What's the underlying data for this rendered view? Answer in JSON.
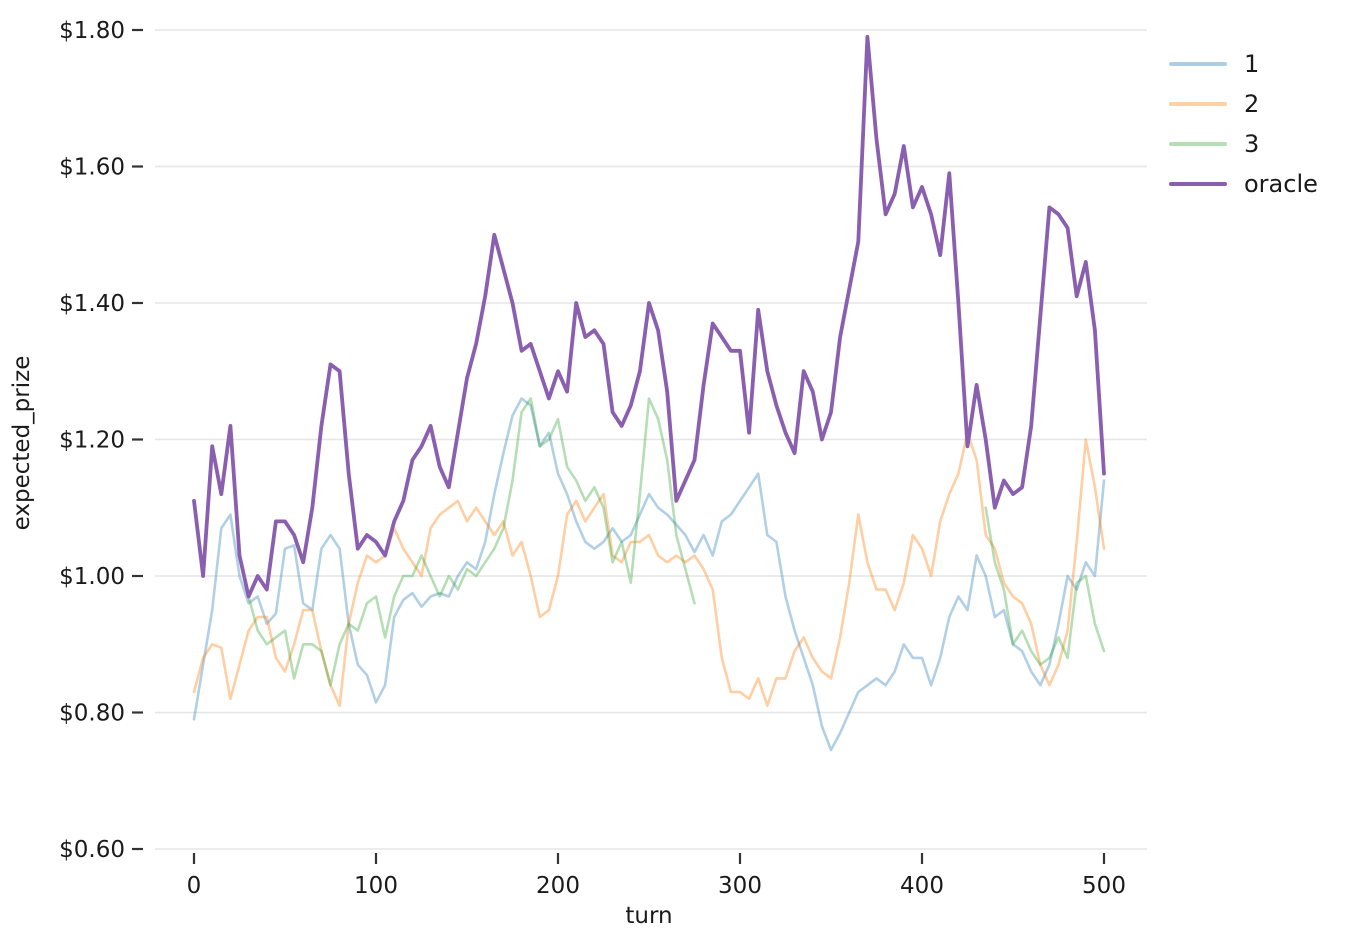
{
  "chart_data": {
    "type": "line",
    "title": "",
    "xlabel": "turn",
    "ylabel": "expected_prize",
    "x_range": [
      0,
      500
    ],
    "y_range": [
      0.6,
      1.8
    ],
    "x_ticks": [
      0,
      100,
      200,
      300,
      400,
      500
    ],
    "y_ticks": [
      0.6,
      0.8,
      1.0,
      1.2,
      1.4,
      1.6,
      1.8
    ],
    "y_tick_labels": [
      "$0.60",
      "$0.80",
      "$1.00",
      "$1.20",
      "$1.40",
      "$1.60",
      "$1.80"
    ],
    "grid": "horizontal-only",
    "legend_position": "right-top",
    "x_start": 0,
    "x_step": 5,
    "colors": {
      "grid": "#e6e6e6",
      "tick": "#333333",
      "text": "#1a1a1a",
      "series_1": "#aecde4",
      "series_2": "#fcd2a2",
      "series_3": "#b5deb7",
      "oracle": "#8a5fb0"
    },
    "series": [
      {
        "name": "1",
        "stroke": "rgba(31,119,180,0.35)",
        "legend_color": "#aecde4",
        "width": 2.6,
        "values": [
          0.79,
          0.87,
          0.95,
          1.07,
          1.09,
          1.0,
          0.96,
          0.97,
          0.93,
          0.945,
          1.04,
          1.045,
          0.96,
          0.95,
          1.04,
          1.06,
          1.04,
          0.93,
          0.87,
          0.855,
          0.815,
          0.84,
          0.94,
          0.965,
          0.975,
          0.955,
          0.97,
          0.975,
          0.97,
          1.0,
          1.02,
          1.01,
          1.05,
          1.12,
          1.18,
          1.235,
          1.26,
          1.25,
          1.19,
          1.21,
          1.15,
          1.12,
          1.08,
          1.05,
          1.04,
          1.05,
          1.07,
          1.05,
          1.06,
          1.09,
          1.12,
          1.1,
          1.09,
          1.075,
          1.06,
          1.035,
          1.06,
          1.03,
          1.08,
          1.09,
          1.11,
          1.13,
          1.15,
          1.06,
          1.05,
          0.97,
          0.92,
          0.88,
          0.84,
          0.78,
          0.745,
          0.77,
          0.8,
          0.83,
          0.84,
          0.85,
          0.84,
          0.86,
          0.9,
          0.88,
          0.88,
          0.84,
          0.88,
          0.94,
          0.97,
          0.95,
          1.03,
          1.0,
          0.94,
          0.95,
          0.9,
          0.89,
          0.86,
          0.84,
          0.87,
          0.93,
          1.0,
          0.98,
          1.02,
          1.0,
          1.14
        ]
      },
      {
        "name": "2",
        "stroke": "rgba(255,127,14,0.38)",
        "legend_color": "#fcd2a2",
        "width": 2.6,
        "values": [
          0.83,
          0.88,
          0.9,
          0.895,
          0.82,
          0.87,
          0.92,
          0.94,
          0.94,
          0.88,
          0.86,
          0.9,
          0.95,
          0.95,
          0.89,
          0.84,
          0.81,
          0.93,
          0.99,
          1.03,
          1.02,
          1.03,
          1.07,
          1.04,
          1.02,
          1.0,
          1.07,
          1.09,
          1.1,
          1.11,
          1.08,
          1.1,
          1.08,
          1.06,
          1.08,
          1.03,
          1.05,
          1.0,
          0.94,
          0.95,
          1.0,
          1.09,
          1.11,
          1.08,
          1.1,
          1.12,
          1.03,
          1.02,
          1.05,
          1.05,
          1.06,
          1.03,
          1.02,
          1.03,
          1.02,
          1.03,
          1.01,
          0.98,
          0.88,
          0.83,
          0.83,
          0.82,
          0.85,
          0.81,
          0.85,
          0.85,
          0.89,
          0.91,
          0.88,
          0.86,
          0.85,
          0.91,
          0.99,
          1.09,
          1.02,
          0.98,
          0.98,
          0.95,
          0.99,
          1.06,
          1.04,
          1.0,
          1.08,
          1.12,
          1.15,
          1.21,
          1.17,
          1.06,
          1.04,
          0.99,
          0.97,
          0.96,
          0.93,
          0.87,
          0.84,
          0.87,
          0.92,
          1.05,
          1.2,
          1.13,
          1.04
        ]
      },
      {
        "name": "3",
        "stroke": "rgba(44,160,44,0.35)",
        "legend_color": "#b5deb7",
        "width": 2.6,
        "values": [
          null,
          null,
          null,
          null,
          null,
          null,
          0.97,
          0.92,
          0.9,
          0.91,
          0.92,
          0.85,
          0.9,
          0.9,
          0.89,
          0.84,
          0.9,
          0.93,
          0.92,
          0.96,
          0.97,
          0.91,
          0.97,
          1.0,
          1.0,
          1.03,
          1.0,
          0.97,
          1.0,
          0.98,
          1.01,
          1.0,
          1.02,
          1.04,
          1.07,
          1.14,
          1.24,
          1.26,
          1.19,
          1.2,
          1.23,
          1.16,
          1.14,
          1.11,
          1.13,
          1.1,
          1.02,
          1.05,
          0.99,
          1.12,
          1.26,
          1.23,
          1.17,
          1.06,
          1.01,
          0.96,
          null,
          null,
          null,
          null,
          null,
          null,
          null,
          null,
          null,
          null,
          null,
          null,
          null,
          null,
          null,
          null,
          null,
          null,
          null,
          null,
          null,
          null,
          null,
          null,
          null,
          null,
          null,
          null,
          null,
          null,
          null,
          1.1,
          1.02,
          0.98,
          0.9,
          0.92,
          0.89,
          0.87,
          0.88,
          0.91,
          0.88,
          0.99,
          1.0,
          0.93,
          0.89
        ]
      },
      {
        "name": "oracle",
        "stroke": "#8a5fb0",
        "legend_color": "#8a5fb0",
        "width": 3.8,
        "values": [
          1.11,
          1.0,
          1.19,
          1.12,
          1.22,
          1.03,
          0.97,
          1.0,
          0.98,
          1.08,
          1.08,
          1.06,
          1.02,
          1.1,
          1.22,
          1.31,
          1.3,
          1.15,
          1.04,
          1.06,
          1.05,
          1.03,
          1.08,
          1.11,
          1.17,
          1.19,
          1.22,
          1.16,
          1.13,
          1.21,
          1.29,
          1.34,
          1.41,
          1.5,
          1.45,
          1.4,
          1.33,
          1.34,
          1.3,
          1.26,
          1.3,
          1.27,
          1.4,
          1.35,
          1.36,
          1.34,
          1.24,
          1.22,
          1.25,
          1.3,
          1.4,
          1.36,
          1.27,
          1.11,
          1.14,
          1.17,
          1.28,
          1.37,
          1.35,
          1.33,
          1.33,
          1.21,
          1.39,
          1.3,
          1.25,
          1.21,
          1.18,
          1.3,
          1.27,
          1.2,
          1.24,
          1.35,
          1.42,
          1.49,
          1.79,
          1.64,
          1.53,
          1.56,
          1.63,
          1.54,
          1.57,
          1.53,
          1.47,
          1.59,
          1.4,
          1.19,
          1.28,
          1.2,
          1.1,
          1.14,
          1.12,
          1.13,
          1.22,
          1.38,
          1.54,
          1.53,
          1.51,
          1.41,
          1.46,
          1.36,
          1.15
        ]
      }
    ]
  }
}
